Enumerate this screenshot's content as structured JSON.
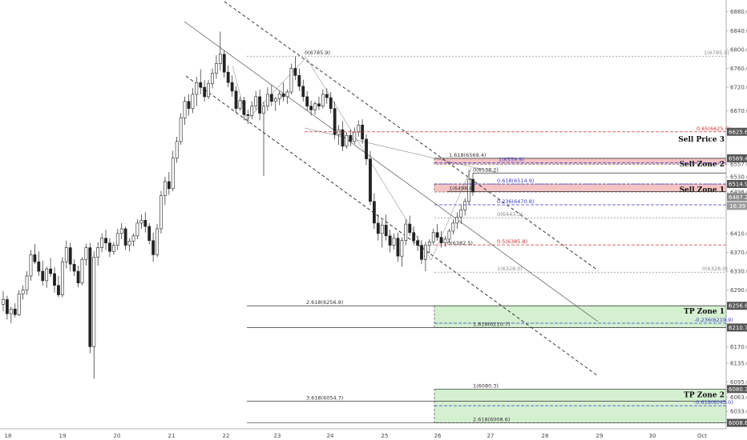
{
  "chart_data": {
    "type": "candlestick",
    "symbol": "",
    "xlabel": "",
    "ylabel": "",
    "x_ticks": [
      "18",
      "19",
      "20",
      "21",
      "22",
      "23",
      "24",
      "25",
      "26",
      "27",
      "28",
      "29",
      "30",
      "Oct"
    ],
    "y_ticks": [
      6880.0,
      6840.0,
      6800.0,
      6760.0,
      6720.0,
      6670.0,
      6625.6,
      6569.4,
      6557.0,
      6530.0,
      6514.9,
      6498.0,
      6487.2,
      6470.0,
      6410.0,
      6370.0,
      6330.0,
      6290.0,
      6256.8,
      6210.7,
      6170.0,
      6135.0,
      6095.0,
      6080.3,
      6063.0,
      6033.0,
      6008.6
    ],
    "ylim": [
      5996,
      6905
    ],
    "price_badges": [
      {
        "value": "6625.6",
        "color": "#555555"
      },
      {
        "value": "6569.4",
        "color": "#555555"
      },
      {
        "value": "6514.9",
        "color": "#555555"
      },
      {
        "value": "6487.2",
        "color": "#888888"
      },
      {
        "value": "6256.8",
        "color": "#555555"
      },
      {
        "value": "6210.7",
        "color": "#555555"
      },
      {
        "value": "6080.3",
        "color": "#555555"
      },
      {
        "value": "6008.6",
        "color": "#555555"
      }
    ],
    "current_price_tag": "16:39",
    "fib_levels": [
      {
        "text": "1(6785.9)",
        "price": 6785.9,
        "color": "#8a8a8a",
        "style": "dotted"
      },
      {
        "text": "0.65(6625.6)",
        "price": 6625.6,
        "color": "#d03030",
        "style": "dashed"
      },
      {
        "text": "1.618(6569.4)",
        "price": 6569.4,
        "color": "#333333",
        "style": "solid"
      },
      {
        "text": "1(6559.9)",
        "price": 6559.9,
        "color": "#3a3ad0",
        "style": "dashed"
      },
      {
        "text": "0(6538.2)",
        "price": 6538.2,
        "color": "#333333",
        "style": "solid"
      },
      {
        "text": "0.618(6514.9)",
        "price": 6514.9,
        "color": "#3a3ad0",
        "style": "dashed"
      },
      {
        "text": "1(6498.8)",
        "price": 6498.8,
        "color": "#333333",
        "style": "solid"
      },
      {
        "text": "0.236(6470.8)",
        "price": 6470.8,
        "color": "#3a3ad0",
        "style": "dashed"
      },
      {
        "text": "0(6443.3)",
        "price": 6443.3,
        "color": "#8a8a8a",
        "style": "dotted"
      },
      {
        "text": "0.5(6385.8)",
        "price": 6385.8,
        "color": "#d03030",
        "style": "dashed"
      },
      {
        "text": "0(6382.5)",
        "price": 6382.5,
        "color": "#333333",
        "style": "none"
      },
      {
        "text": "1(6328.0)",
        "price": 6328.0,
        "color": "#8a8a8a",
        "style": "dotted"
      },
      {
        "text": "0(6328.0)",
        "price": 6328.0,
        "color": "#8a8a8a",
        "style": "none"
      },
      {
        "text": "2.618(6256.8)",
        "price": 6256.8,
        "color": "#333333",
        "style": "solid"
      },
      {
        "text": "-0.236(6219.9)",
        "price": 6219.9,
        "color": "#3a3ad0",
        "style": "dashed"
      },
      {
        "text": "1.618(6210.7)",
        "price": 6210.7,
        "color": "#333333",
        "style": "solid"
      },
      {
        "text": "1(6080.3)",
        "price": 6080.3,
        "color": "#333333",
        "style": "solid"
      },
      {
        "text": "3.618(6054.7)",
        "price": 6054.7,
        "color": "#333333",
        "style": "solid"
      },
      {
        "text": "-0.618(6045.0)",
        "price": 6045.0,
        "color": "#3a3ad0",
        "style": "dashed"
      },
      {
        "text": "2.618(6008.6)",
        "price": 6008.6,
        "color": "#333333",
        "style": "solid"
      },
      {
        "text": "0(6785.9)",
        "price": 6785.9,
        "color": "#333333",
        "style": "none"
      }
    ],
    "zones": [
      {
        "label": "Sell Zone 2",
        "top": 6569.4,
        "bottom": 6557.0,
        "color": "#f4c4c4"
      },
      {
        "label": "Sell Zone 1",
        "top": 6514.9,
        "bottom": 6498.0,
        "color": "#f4c4c4"
      },
      {
        "label": "TP Zone 1",
        "top": 6256.8,
        "bottom": 6210.7,
        "color": "#d4f0d0"
      },
      {
        "label": "TP Zone 2",
        "top": 6080.3,
        "bottom": 6008.6,
        "color": "#d4f0d0"
      }
    ],
    "markers": [
      {
        "label": "Sell Price 3",
        "price": 6625.6
      }
    ],
    "series": [
      {
        "values": [
          [
            6260,
            6288,
            6245,
            6270
          ],
          [
            6270,
            6278,
            6228,
            6240
          ],
          [
            6240,
            6255,
            6220,
            6250
          ],
          [
            6250,
            6262,
            6232,
            6238
          ],
          [
            6238,
            6290,
            6235,
            6282
          ],
          [
            6282,
            6300,
            6270,
            6290
          ],
          [
            6290,
            6330,
            6280,
            6320
          ],
          [
            6320,
            6375,
            6310,
            6365
          ],
          [
            6365,
            6388,
            6345,
            6350
          ],
          [
            6350,
            6372,
            6320,
            6330
          ],
          [
            6330,
            6352,
            6300,
            6310
          ],
          [
            6310,
            6340,
            6295,
            6335
          ],
          [
            6335,
            6358,
            6318,
            6325
          ],
          [
            6325,
            6338,
            6285,
            6300
          ],
          [
            6300,
            6320,
            6275,
            6280
          ],
          [
            6280,
            6360,
            6275,
            6350
          ],
          [
            6350,
            6395,
            6336,
            6380
          ],
          [
            6380,
            6390,
            6330,
            6345
          ],
          [
            6345,
            6355,
            6320,
            6330
          ],
          [
            6330,
            6342,
            6296,
            6305
          ],
          [
            6305,
            6360,
            6300,
            6355
          ],
          [
            6355,
            6388,
            6342,
            6380
          ],
          [
            6380,
            6390,
            6156,
            6170
          ],
          [
            6170,
            6372,
            6102,
            6360
          ],
          [
            6360,
            6392,
            6342,
            6380
          ],
          [
            6380,
            6410,
            6370,
            6400
          ],
          [
            6400,
            6418,
            6375,
            6390
          ],
          [
            6390,
            6400,
            6360,
            6372
          ],
          [
            6372,
            6392,
            6365,
            6385
          ],
          [
            6385,
            6420,
            6375,
            6410
          ],
          [
            6410,
            6432,
            6398,
            6420
          ],
          [
            6420,
            6425,
            6375,
            6385
          ],
          [
            6385,
            6400,
            6372,
            6394
          ],
          [
            6394,
            6410,
            6383,
            6405
          ],
          [
            6405,
            6440,
            6398,
            6432
          ],
          [
            6432,
            6450,
            6420,
            6438
          ],
          [
            6438,
            6455,
            6412,
            6425
          ],
          [
            6425,
            6432,
            6387,
            6395
          ],
          [
            6395,
            6412,
            6350,
            6365
          ],
          [
            6365,
            6430,
            6360,
            6420
          ],
          [
            6420,
            6500,
            6410,
            6490
          ],
          [
            6490,
            6530,
            6470,
            6520
          ],
          [
            6520,
            6540,
            6492,
            6505
          ],
          [
            6505,
            6585,
            6500,
            6570
          ],
          [
            6570,
            6615,
            6560,
            6605
          ],
          [
            6605,
            6665,
            6598,
            6655
          ],
          [
            6655,
            6700,
            6640,
            6690
          ],
          [
            6690,
            6705,
            6660,
            6675
          ],
          [
            6675,
            6718,
            6665,
            6705
          ],
          [
            6705,
            6742,
            6680,
            6730
          ],
          [
            6730,
            6758,
            6705,
            6720
          ],
          [
            6720,
            6735,
            6690,
            6700
          ],
          [
            6700,
            6735,
            6695,
            6728
          ],
          [
            6728,
            6760,
            6718,
            6750
          ],
          [
            6750,
            6788,
            6738,
            6770
          ],
          [
            6770,
            6838,
            6755,
            6790
          ],
          [
            6790,
            6798,
            6740,
            6752
          ],
          [
            6752,
            6766,
            6720,
            6730
          ],
          [
            6730,
            6745,
            6700,
            6712
          ],
          [
            6712,
            6722,
            6665,
            6675
          ],
          [
            6675,
            6700,
            6670,
            6692
          ],
          [
            6692,
            6700,
            6650,
            6662
          ],
          [
            6662,
            6672,
            6642,
            6660
          ],
          [
            6660,
            6690,
            6652,
            6680
          ],
          [
            6680,
            6712,
            6672,
            6700
          ],
          [
            6700,
            6715,
            6650,
            6665
          ],
          [
            6665,
            6690,
            6532,
            6680
          ],
          [
            6680,
            6720,
            6670,
            6705
          ],
          [
            6705,
            6725,
            6680,
            6690
          ],
          [
            6690,
            6700,
            6670,
            6696
          ],
          [
            6696,
            6712,
            6682,
            6706
          ],
          [
            6706,
            6730,
            6690,
            6700
          ],
          [
            6700,
            6715,
            6685,
            6710
          ],
          [
            6710,
            6770,
            6705,
            6760
          ],
          [
            6760,
            6785,
            6735,
            6745
          ],
          [
            6745,
            6760,
            6712,
            6722
          ],
          [
            6722,
            6736,
            6690,
            6700
          ],
          [
            6700,
            6712,
            6670,
            6680
          ],
          [
            6680,
            6692,
            6660,
            6672
          ],
          [
            6672,
            6690,
            6662,
            6685
          ],
          [
            6685,
            6700,
            6672,
            6680
          ],
          [
            6680,
            6715,
            6675,
            6705
          ],
          [
            6705,
            6718,
            6685,
            6698
          ],
          [
            6698,
            6710,
            6665,
            6675
          ],
          [
            6675,
            6690,
            6610,
            6620
          ],
          [
            6620,
            6640,
            6598,
            6630
          ],
          [
            6630,
            6648,
            6585,
            6595
          ],
          [
            6595,
            6625,
            6590,
            6618
          ],
          [
            6618,
            6630,
            6595,
            6605
          ],
          [
            6605,
            6635,
            6600,
            6625
          ],
          [
            6625,
            6650,
            6615,
            6640
          ],
          [
            6640,
            6652,
            6600,
            6610
          ],
          [
            6610,
            6620,
            6555,
            6568
          ],
          [
            6568,
            6585,
            6470,
            6478
          ],
          [
            6478,
            6495,
            6420,
            6432
          ],
          [
            6432,
            6450,
            6395,
            6410
          ],
          [
            6410,
            6438,
            6380,
            6428
          ],
          [
            6428,
            6450,
            6395,
            6405
          ],
          [
            6405,
            6418,
            6370,
            6385
          ],
          [
            6385,
            6410,
            6376,
            6400
          ],
          [
            6400,
            6412,
            6350,
            6362
          ],
          [
            6362,
            6402,
            6340,
            6395
          ],
          [
            6395,
            6440,
            6385,
            6430
          ],
          [
            6430,
            6448,
            6405,
            6412
          ],
          [
            6412,
            6425,
            6385,
            6395
          ],
          [
            6395,
            6405,
            6373,
            6385
          ],
          [
            6385,
            6396,
            6345,
            6355
          ],
          [
            6355,
            6392,
            6330,
            6385
          ],
          [
            6385,
            6398,
            6368,
            6392
          ],
          [
            6392,
            6420,
            6385,
            6412
          ],
          [
            6412,
            6430,
            6395,
            6402
          ],
          [
            6402,
            6415,
            6380,
            6390
          ],
          [
            6390,
            6405,
            6382,
            6398
          ],
          [
            6398,
            6420,
            6390,
            6415
          ],
          [
            6415,
            6440,
            6408,
            6432
          ],
          [
            6432,
            6455,
            6420,
            6445
          ],
          [
            6445,
            6470,
            6430,
            6460
          ],
          [
            6460,
            6485,
            6448,
            6478
          ],
          [
            6478,
            6545,
            6470,
            6525
          ],
          [
            6525,
            6538,
            6490,
            6498
          ]
        ]
      }
    ]
  }
}
